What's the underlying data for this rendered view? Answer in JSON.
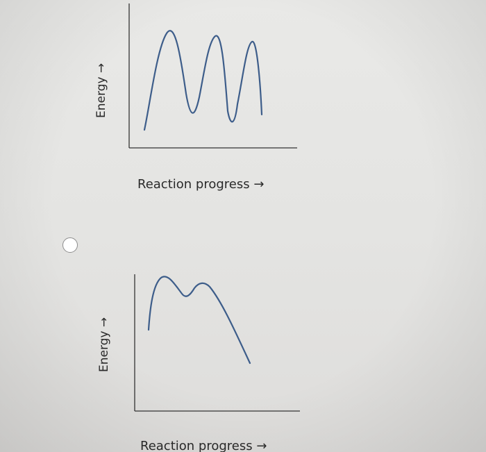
{
  "options": [
    {
      "y_axis_label": "Energy →",
      "x_axis_label": "Reaction progress →",
      "curve": "three-peak"
    },
    {
      "y_axis_label": "Energy →",
      "x_axis_label": "Reaction progress →",
      "curve": "two-peak-descending",
      "selected": false
    }
  ],
  "colors": {
    "curve": "#3d5d8a",
    "axis": "#333333",
    "background": "#e6e6e4"
  }
}
